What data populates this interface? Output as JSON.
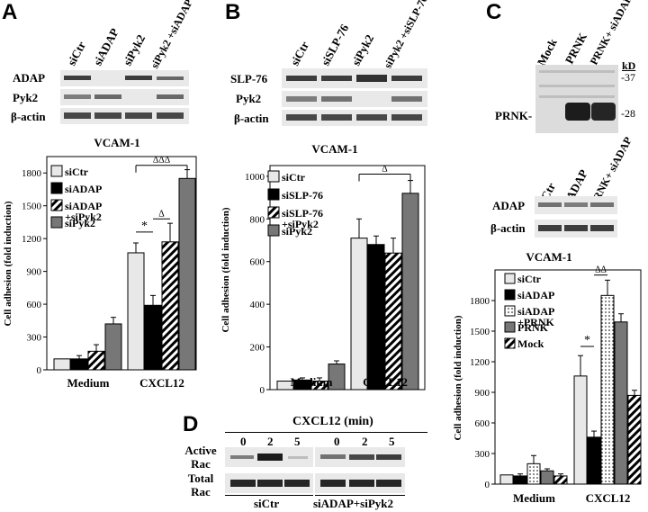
{
  "panelA": {
    "letter": "A",
    "lanes": [
      "siCtr",
      "siADAP",
      "siPyk2",
      "siPyk2 +siADAP"
    ],
    "rows": [
      "ADAP",
      "Pyk2",
      "β-actin"
    ]
  },
  "panelB": {
    "letter": "B",
    "lanes": [
      "siCtr",
      "siSLP-76",
      "siPyk2",
      "siPyk2 +siSLP-76"
    ],
    "rows": [
      "SLP-76",
      "Pyk2",
      "β-actin"
    ]
  },
  "panelC": {
    "letter": "C",
    "lanes_top": [
      "Mock",
      "PRNK",
      "PRNK+ siADAP"
    ],
    "kd_label": "kD",
    "markers": [
      "-37",
      "-28"
    ],
    "band_label": "PRNK-",
    "lanes_mid": [
      "siCtr",
      "siADAP",
      "PRNK+ siADAP"
    ],
    "rows_mid": [
      "ADAP",
      "β-actin"
    ]
  },
  "panelD": {
    "letter": "D",
    "header": "CXCL12 (min)",
    "times": [
      "0",
      "2",
      "5",
      "0",
      "2",
      "5"
    ],
    "row1": "Active Rac",
    "row2": "Total Rac",
    "group1": "siCtr",
    "group2": "siADAP+siPyk2"
  },
  "chart_data": [
    {
      "type": "bar",
      "panel": "A",
      "title": "VCAM-1",
      "ylabel": "Cell adhesion (fold induction)",
      "categories": [
        "Medium",
        "CXCL12"
      ],
      "ylim": [
        0,
        1950
      ],
      "yticks": [
        0,
        300,
        600,
        900,
        1200,
        1500,
        1800
      ],
      "series": [
        {
          "name": "siCtr",
          "values": [
            100,
            1070
          ],
          "errors": [
            0,
            90
          ],
          "fill": "#e8e8e8"
        },
        {
          "name": "siADAP",
          "values": [
            100,
            590
          ],
          "errors": [
            30,
            90
          ],
          "fill": "#000000"
        },
        {
          "name": "siADAP +siPyk2",
          "values": [
            170,
            1170
          ],
          "errors": [
            60,
            170
          ],
          "fill": "hatch"
        },
        {
          "name": "siPyk2",
          "values": [
            420,
            1750
          ],
          "errors": [
            60,
            80
          ],
          "fill": "#777777"
        }
      ],
      "annotations": [
        "*",
        "Δ",
        "ΔΔΔ"
      ]
    },
    {
      "type": "bar",
      "panel": "B",
      "title": "VCAM-1",
      "ylabel": "Cell adhesion (fold induction)",
      "categories": [
        "Medium",
        "CXCL12"
      ],
      "ylim": [
        0,
        1050
      ],
      "yticks": [
        0,
        200,
        400,
        600,
        800,
        1000
      ],
      "series": [
        {
          "name": "siCtr",
          "values": [
            40,
            710
          ],
          "errors": [
            0,
            90
          ],
          "fill": "#e8e8e8"
        },
        {
          "name": "siSLP-76",
          "values": [
            45,
            680
          ],
          "errors": [
            10,
            40
          ],
          "fill": "#000000"
        },
        {
          "name": "siSLP-76 +siPyk2",
          "values": [
            40,
            640
          ],
          "errors": [
            15,
            70
          ],
          "fill": "hatch"
        },
        {
          "name": "siPyk2",
          "values": [
            120,
            920
          ],
          "errors": [
            15,
            60
          ],
          "fill": "#777777"
        }
      ],
      "annotations": [
        "Δ"
      ]
    },
    {
      "type": "bar",
      "panel": "C",
      "title": "VCAM-1",
      "ylabel": "Cell adhesion (fold induction)",
      "categories": [
        "Medium",
        "CXCL12"
      ],
      "ylim": [
        0,
        2100
      ],
      "yticks": [
        0,
        300,
        600,
        900,
        1200,
        1500,
        1800
      ],
      "series": [
        {
          "name": "siCtr",
          "values": [
            90,
            1060
          ],
          "errors": [
            0,
            200
          ],
          "fill": "#e8e8e8"
        },
        {
          "name": "siADAP",
          "values": [
            80,
            460
          ],
          "errors": [
            20,
            60
          ],
          "fill": "#000000"
        },
        {
          "name": "siADAP +PRNK",
          "values": [
            200,
            1850
          ],
          "errors": [
            80,
            150
          ],
          "fill": "dots"
        },
        {
          "name": "PRNK",
          "values": [
            130,
            1590
          ],
          "errors": [
            20,
            80
          ],
          "fill": "#777777"
        },
        {
          "name": "Mock",
          "values": [
            80,
            870
          ],
          "errors": [
            20,
            50
          ],
          "fill": "hatch"
        }
      ],
      "annotations": [
        "*",
        "ΔΔ"
      ]
    }
  ]
}
